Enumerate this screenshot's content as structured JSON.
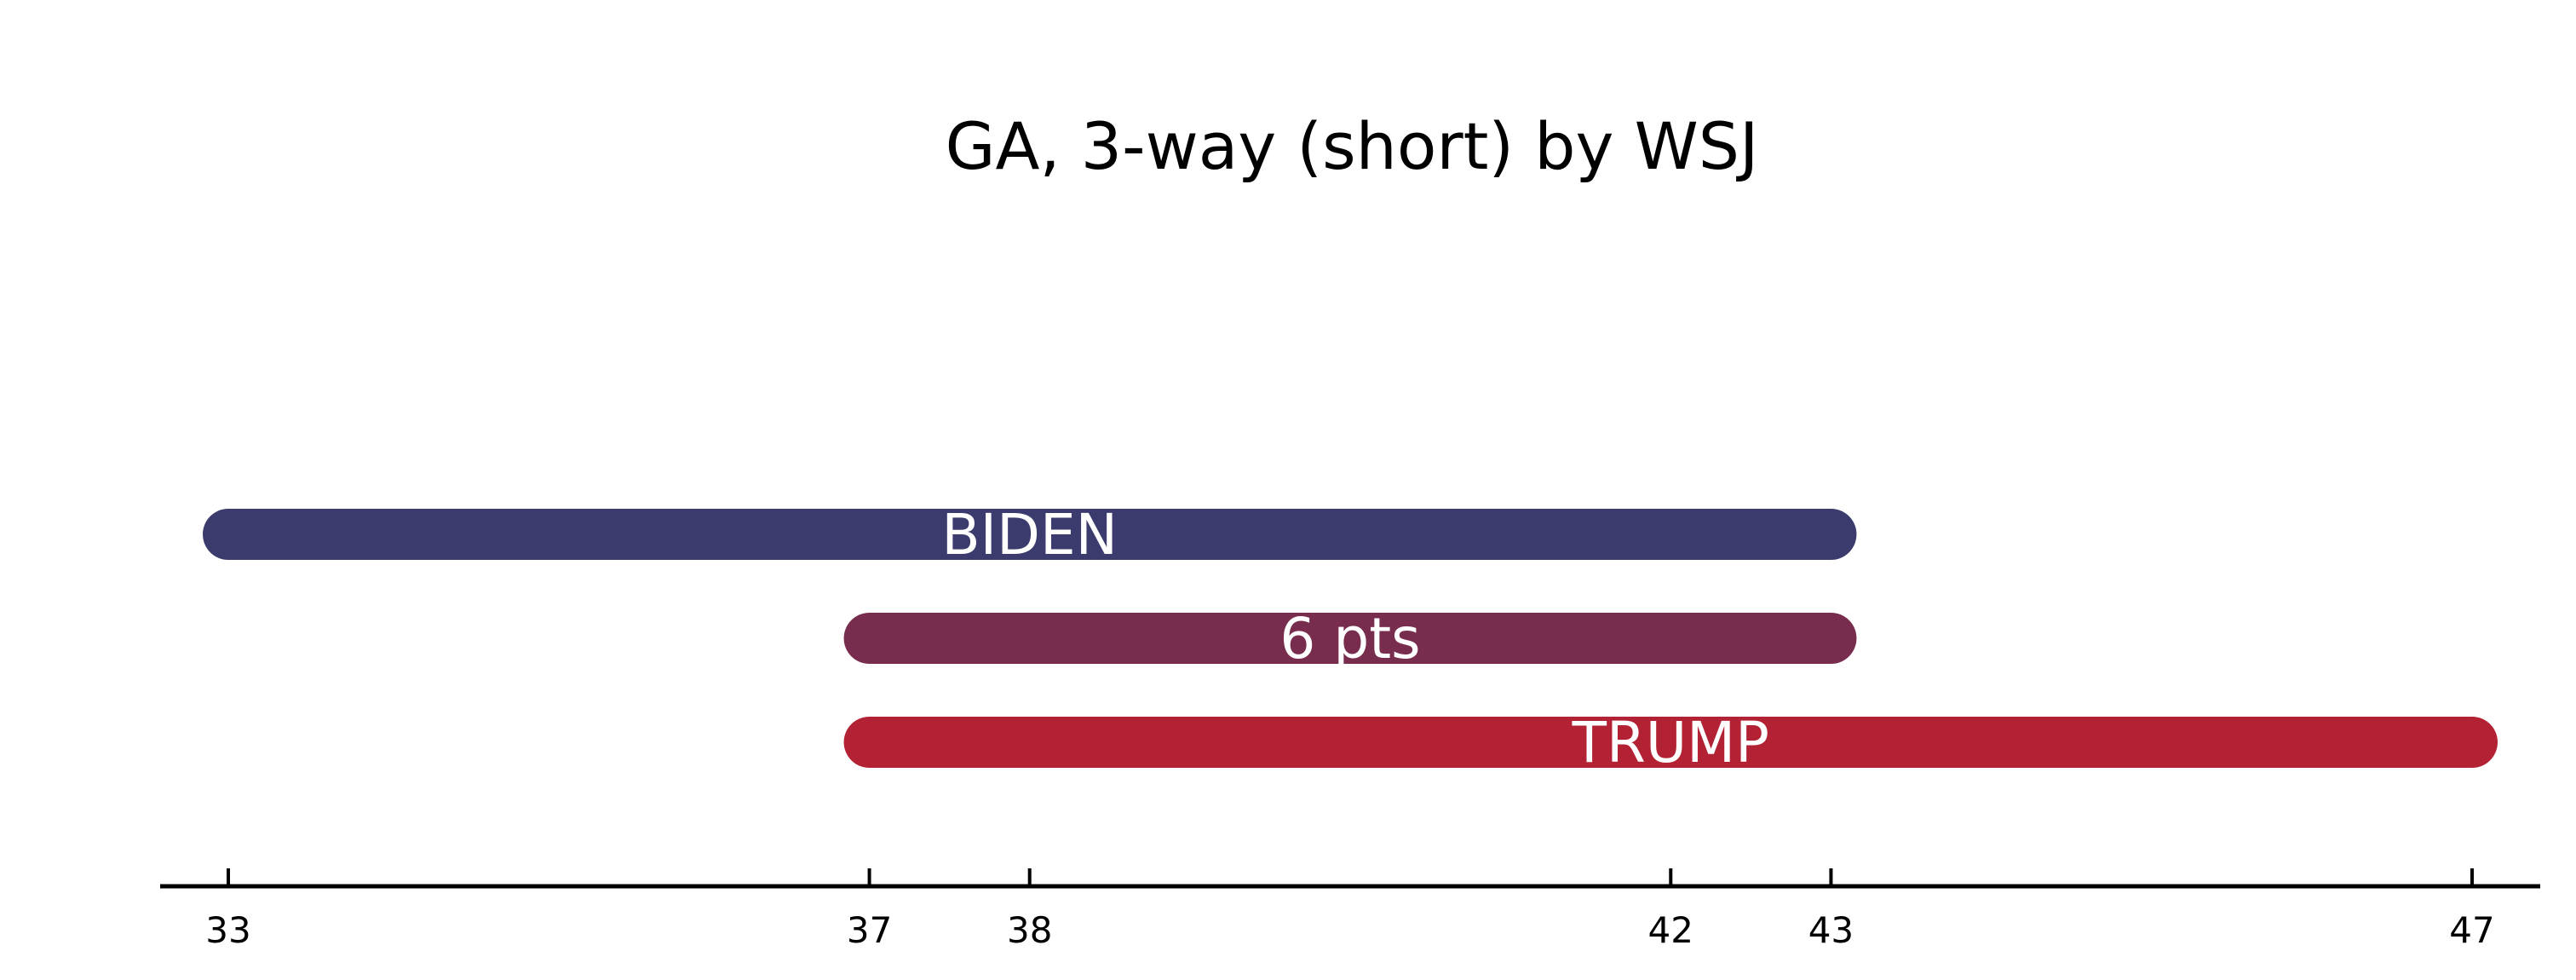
{
  "chart_data": {
    "type": "bar",
    "orientation": "horizontal-range",
    "title": "GA, 3-way (short) by WSJ",
    "xlabel": "",
    "ylabel": "",
    "grid": false,
    "xlim": [
      32.5,
      47.5
    ],
    "ticks": [
      "33",
      "37",
      "38",
      "42",
      "43",
      "47"
    ],
    "tick_values": [
      33,
      37,
      38,
      42,
      43,
      47
    ],
    "bars": [
      {
        "label": "BIDEN",
        "start": 33,
        "end": 43,
        "label_at": 38,
        "color": "#3b3b6d"
      },
      {
        "label": "6 pts",
        "start": 37,
        "end": 43,
        "label_at": 40,
        "color": "#782d4e"
      },
      {
        "label": "TRUMP",
        "start": 37,
        "end": 47,
        "label_at": 42,
        "color": "#b22234"
      }
    ]
  }
}
